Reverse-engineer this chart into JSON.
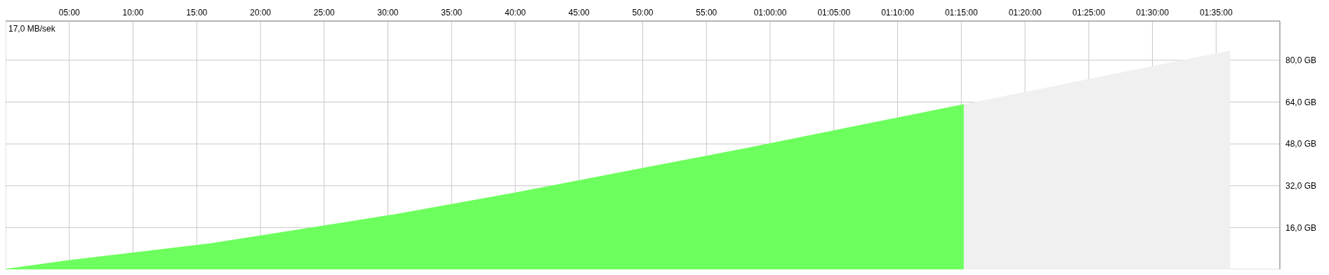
{
  "chart_data": {
    "type": "area",
    "annotations": [
      "17,0 MB/sek"
    ],
    "series": [
      {
        "color": "#6dff5d",
        "x": [
          0,
          4.9,
          16.1,
          30.3,
          40.2,
          50.1,
          58.0,
          75.2
        ],
        "values": [
          0,
          3.3,
          9.8,
          20.7,
          29.4,
          38.7,
          46.1,
          63.0
        ]
      },
      {
        "color": "#f0f0f0",
        "x": [
          75.2,
          96.1
        ],
        "values": [
          63.0,
          83.5
        ]
      }
    ],
    "xlim": [
      0,
      100
    ],
    "xticks": [
      {
        "value": 5,
        "label": "05:00"
      },
      {
        "value": 10,
        "label": "10:00"
      },
      {
        "value": 15,
        "label": "15:00"
      },
      {
        "value": 20,
        "label": "20:00"
      },
      {
        "value": 25,
        "label": "25:00"
      },
      {
        "value": 30,
        "label": "30:00"
      },
      {
        "value": 35,
        "label": "35:00"
      },
      {
        "value": 40,
        "label": "40:00"
      },
      {
        "value": 45,
        "label": "45:00"
      },
      {
        "value": 50,
        "label": "50:00"
      },
      {
        "value": 55,
        "label": "55:00"
      },
      {
        "value": 60,
        "label": "01:00:00"
      },
      {
        "value": 65,
        "label": "01:05:00"
      },
      {
        "value": 70,
        "label": "01:10:00"
      },
      {
        "value": 75,
        "label": "01:15:00"
      },
      {
        "value": 80,
        "label": "01:20:00"
      },
      {
        "value": 85,
        "label": "01:25:00"
      },
      {
        "value": 90,
        "label": "01:30:00"
      },
      {
        "value": 95,
        "label": "01:35:00"
      }
    ],
    "ylim": [
      0,
      95
    ],
    "yticks": [
      {
        "value": 16,
        "label": "16,0 GB"
      },
      {
        "value": 32,
        "label": "32,0 GB"
      },
      {
        "value": 48,
        "label": "48,0 GB"
      },
      {
        "value": 64,
        "label": "64,0 GB"
      },
      {
        "value": 80,
        "label": "80,0 GB"
      }
    ],
    "grid": true
  }
}
